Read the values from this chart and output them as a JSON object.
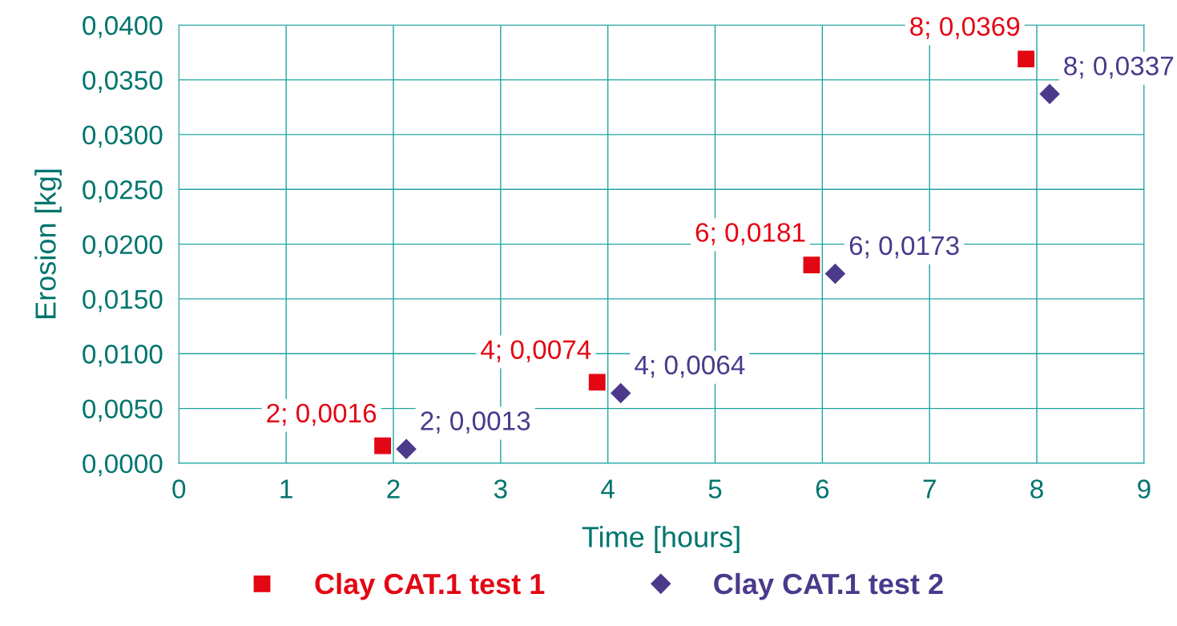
{
  "chart_data": {
    "type": "scatter",
    "xlabel": "Time [hours]",
    "ylabel": "Erosion [kg]",
    "xlim": [
      0,
      9
    ],
    "xticks": [
      0,
      1,
      2,
      3,
      4,
      5,
      6,
      7,
      8,
      9
    ],
    "ylim": [
      0,
      0.04
    ],
    "yticks": [
      {
        "value": 0,
        "label": "0,0000"
      },
      {
        "value": 0.005,
        "label": "0,0050"
      },
      {
        "value": 0.01,
        "label": "0,0100"
      },
      {
        "value": 0.015,
        "label": "0,0150"
      },
      {
        "value": 0.02,
        "label": "0,0200"
      },
      {
        "value": 0.025,
        "label": "0,0250"
      },
      {
        "value": 0.03,
        "label": "0,0300"
      },
      {
        "value": 0.035,
        "label": "0,0350"
      },
      {
        "value": 0.04,
        "label": "0,0400"
      }
    ],
    "grid": true,
    "legend": "bottom",
    "series": [
      {
        "name": "Clay CAT.1 test 1",
        "color": "#e30613",
        "marker": "square",
        "x": [
          1.9,
          3.9,
          5.9,
          7.9
        ],
        "values": [
          0.0016,
          0.0074,
          0.0181,
          0.0369
        ],
        "value_labels": [
          "2; 0,0016",
          "4; 0,0074",
          "6; 0,0181",
          "8; 0,0369"
        ]
      },
      {
        "name": "Clay CAT.1 test 2",
        "color": "#4b3a8c",
        "marker": "diamond",
        "x": [
          2.12,
          4.12,
          6.12,
          8.12
        ],
        "values": [
          0.0013,
          0.0064,
          0.0173,
          0.0337
        ],
        "value_labels": [
          "2; 0,0013",
          "4; 0,0064",
          "6; 0,0173",
          "8; 0,0337"
        ]
      }
    ]
  }
}
